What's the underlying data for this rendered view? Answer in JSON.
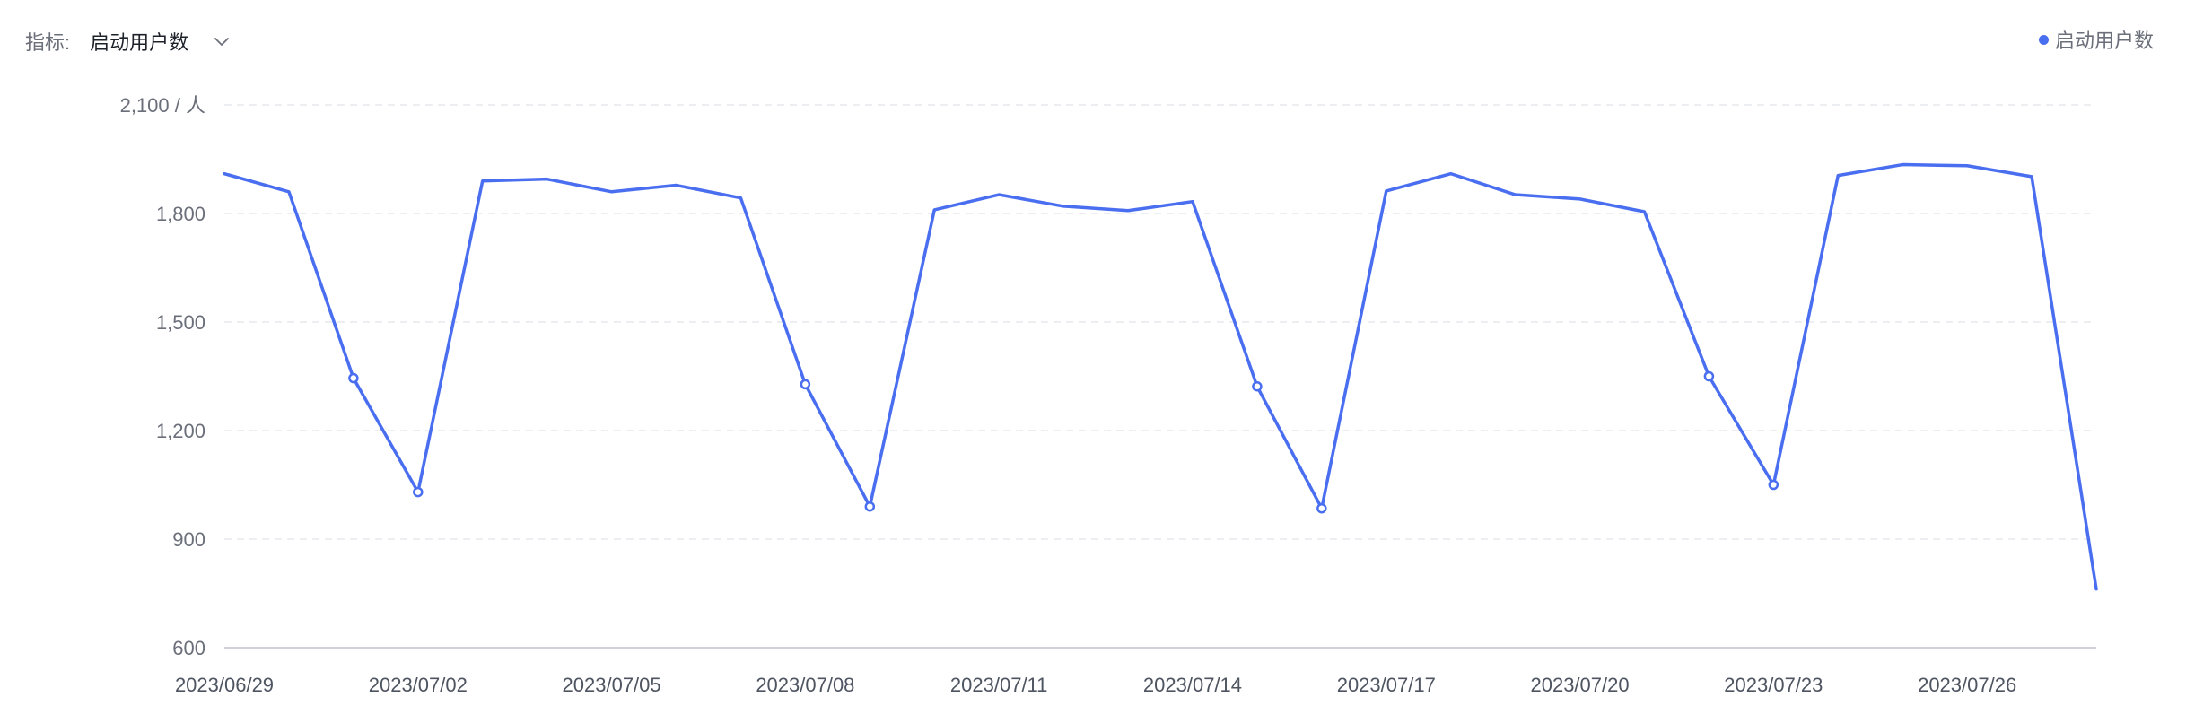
{
  "metric": {
    "label": "指标:",
    "selected": "启动用户数"
  },
  "legend": {
    "label": "启动用户数",
    "color": "#4a6ef0"
  },
  "colors": {
    "line": "#4a6ef0",
    "grid": "#e6e8ee",
    "axis": "#c0c4cc"
  },
  "icons": {
    "dropdown": "chevron-down-icon"
  },
  "chart_data": {
    "type": "line",
    "title": "",
    "xlabel": "",
    "ylabel": "",
    "ylim": [
      600,
      2100
    ],
    "y_ticks": [
      "600",
      "900",
      "1,200",
      "1,500",
      "1,800",
      "2,100 / 人"
    ],
    "y_tick_values": [
      600,
      900,
      1200,
      1500,
      1800,
      2100
    ],
    "grid": true,
    "legend_position": "top-right",
    "x_tick_labels": [
      "2023/06/29",
      "2023/07/02",
      "2023/07/05",
      "2023/07/08",
      "2023/07/11",
      "2023/07/14",
      "2023/07/17",
      "2023/07/20",
      "2023/07/23",
      "2023/07/26"
    ],
    "x": [
      "2023/06/29",
      "2023/06/30",
      "2023/07/01",
      "2023/07/02",
      "2023/07/03",
      "2023/07/04",
      "2023/07/05",
      "2023/07/06",
      "2023/07/07",
      "2023/07/08",
      "2023/07/09",
      "2023/07/10",
      "2023/07/11",
      "2023/07/12",
      "2023/07/13",
      "2023/07/14",
      "2023/07/15",
      "2023/07/16",
      "2023/07/17",
      "2023/07/18",
      "2023/07/19",
      "2023/07/20",
      "2023/07/21",
      "2023/07/22",
      "2023/07/23",
      "2023/07/24",
      "2023/07/25",
      "2023/07/26",
      "2023/07/27",
      "2023/07/28"
    ],
    "series": [
      {
        "name": "启动用户数",
        "values": [
          1910,
          1860,
          1345,
          1030,
          1890,
          1895,
          1860,
          1878,
          1843,
          1328,
          990,
          1810,
          1852,
          1820,
          1808,
          1833,
          1322,
          985,
          1862,
          1910,
          1852,
          1840,
          1805,
          1350,
          1050,
          1905,
          1935,
          1932,
          1902,
          762
        ],
        "markers": [
          2,
          3,
          9,
          10,
          16,
          17,
          23,
          24
        ]
      }
    ]
  }
}
